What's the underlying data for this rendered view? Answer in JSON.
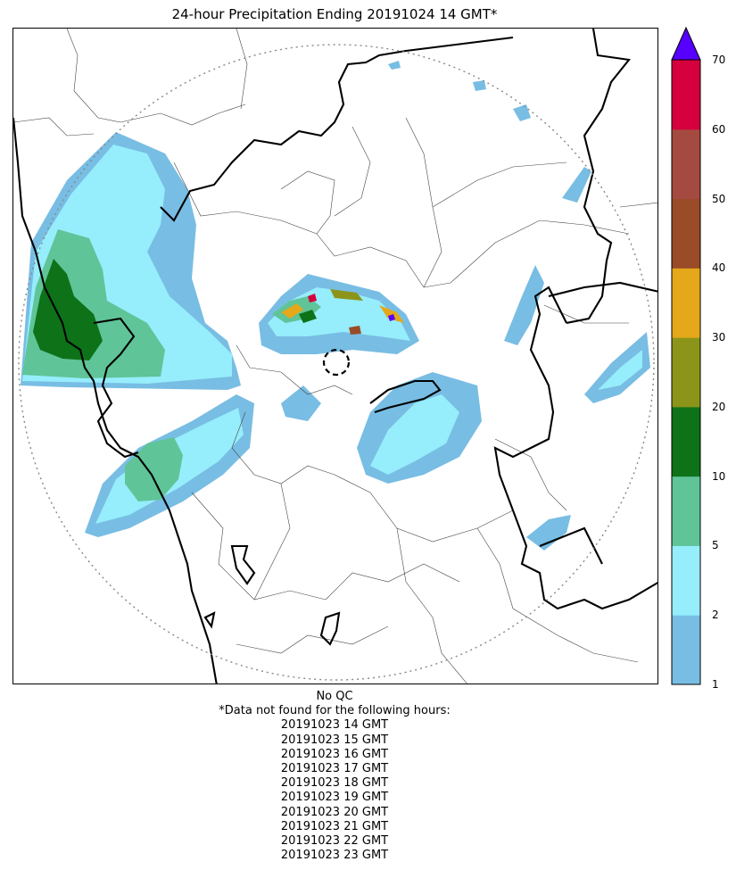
{
  "title": "24-hour Precipitation Ending 20191024 14 GMT*",
  "colorbar": {
    "ticks": [
      "1",
      "2",
      "5",
      "10",
      "20",
      "30",
      "40",
      "50",
      "60",
      "70"
    ],
    "bands": [
      {
        "from": "1",
        "to": "2",
        "color": "#78bde3"
      },
      {
        "from": "2",
        "to": "5",
        "color": "#96edfb"
      },
      {
        "from": "5",
        "to": "10",
        "color": "#5fc497"
      },
      {
        "from": "10",
        "to": "20",
        "color": "#0e7219"
      },
      {
        "from": "20",
        "to": "30",
        "color": "#8c9519"
      },
      {
        "from": "30",
        "to": "40",
        "color": "#e4a81a"
      },
      {
        "from": "40",
        "to": "50",
        "color": "#9a4b27"
      },
      {
        "from": "50",
        "to": "60",
        "color": "#a54a40"
      },
      {
        "from": "60",
        "to": "70",
        "color": "#d5003d"
      }
    ],
    "extend_color": "#5700ff"
  },
  "footer": {
    "qc": "No QC",
    "note": "*Data not found for the following hours:",
    "hours": [
      "20191023 14 GMT",
      "20191023 15 GMT",
      "20191023 16 GMT",
      "20191023 17 GMT",
      "20191023 18 GMT",
      "20191023 19 GMT",
      "20191023 20 GMT",
      "20191023 21 GMT",
      "20191023 22 GMT",
      "20191023 23 GMT"
    ]
  }
}
